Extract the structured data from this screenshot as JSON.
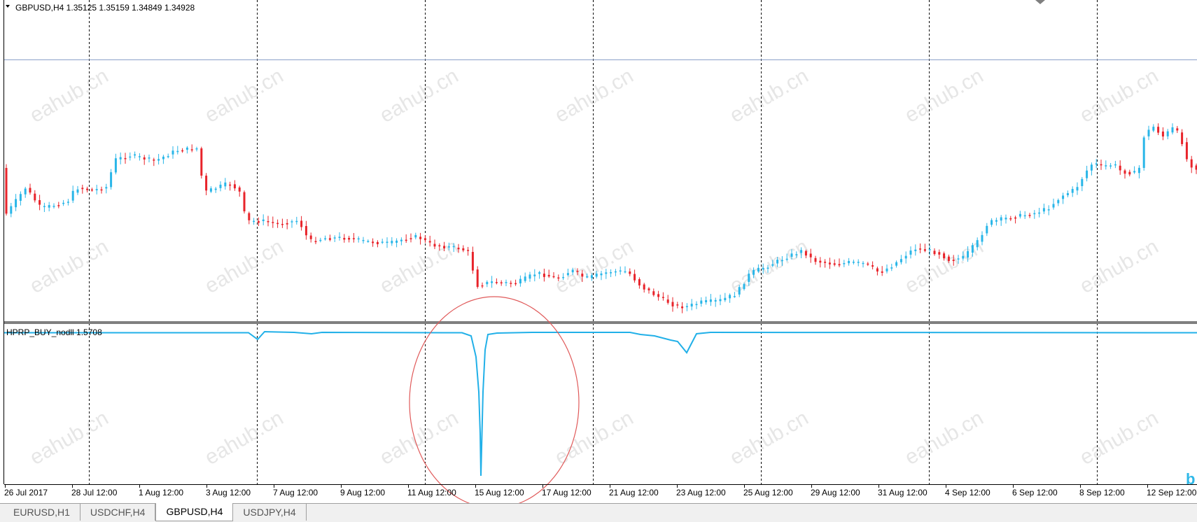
{
  "main_chart": {
    "header_text": "GBPUSD,H4  1.35125 1.35159 1.34849 1.34928"
  },
  "indicator": {
    "header_text": "HPRP_BUY_nodll  1.5708"
  },
  "chart_data": [
    {
      "type": "candlestick",
      "symbol": "GBPUSD",
      "timeframe": "H4",
      "ohlc_current": {
        "open": 1.35125,
        "high": 1.35159,
        "low": 1.34849,
        "close": 1.34928
      },
      "x_tick_labels": [
        "26 Jul 2017",
        "28 Jul 12:00",
        "1 Aug 12:00",
        "3 Aug 12:00",
        "7 Aug 12:00",
        "9 Aug 12:00",
        "11 Aug 12:00",
        "15 Aug 12:00",
        "17 Aug 12:00",
        "21 Aug 12:00",
        "23 Aug 12:00",
        "25 Aug 12:00",
        "29 Aug 12:00",
        "31 Aug 12:00",
        "4 Sep 12:00",
        "6 Sep 12:00",
        "8 Sep 12:00",
        "12 Sep 12:00"
      ],
      "y_axis_visible": false,
      "grid": "vertical-dotted",
      "up_color": "#29b6e8",
      "down_color": "#e8232a",
      "watermark": "eahub.cn"
    },
    {
      "type": "line",
      "name": "HPRP_BUY_nodll",
      "current_value": 1.5708,
      "line_color": "#21b0e8",
      "baseline": 1.5708,
      "note_annotation": "red ellipse around 15 Aug dip"
    }
  ],
  "tabs": [
    {
      "label": "EURUSD,H1",
      "active": false
    },
    {
      "label": "USDCHF,H4",
      "active": false
    },
    {
      "label": "GBPUSD,H4",
      "active": true
    },
    {
      "label": "USDJPY,H4",
      "active": false
    }
  ],
  "colors": {
    "grid": "#000000",
    "separator": "#7f7f7f",
    "h_line": "#8aa0c8",
    "annotation": "#e05a5a",
    "watermark": "#e6e6e6"
  }
}
